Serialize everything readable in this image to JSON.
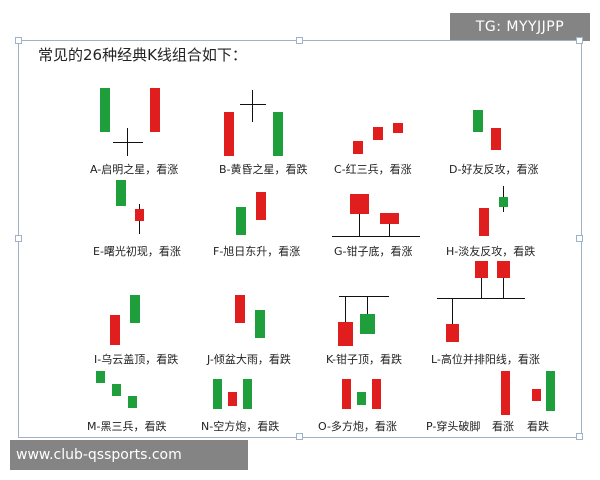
{
  "watermark": "TG: MYYJJPP",
  "title": "常见的26种经典K线组合如下：",
  "footer": "www.club-qssports.com",
  "colors": {
    "bullish": "#e01e1e",
    "bearish": "#1f9e3c",
    "line": "#111111"
  },
  "patterns": {
    "a": "A-启明之星，看涨",
    "b": "B-黄昏之星，看跌",
    "c": "C-红三兵，看涨",
    "d": "D-好友反攻，看涨",
    "e": "E-曙光初现，看涨",
    "f": "F-旭日东升，看涨",
    "g": "G-钳子底，看涨",
    "h": "H-淡友反攻，看跌",
    "i": "I-乌云盖顶，看跌",
    "j": "J-倾盆大雨，看跌",
    "k": "K-钳子顶，看跌",
    "l": "L-高位并排阳线，看涨",
    "m": "M-黑三兵，看跌",
    "n": "N-空方炮，看跌",
    "o": "O-多方炮，看涨",
    "p": "P-穿头破脚",
    "p_up": "看涨",
    "p_down": "看跌"
  }
}
